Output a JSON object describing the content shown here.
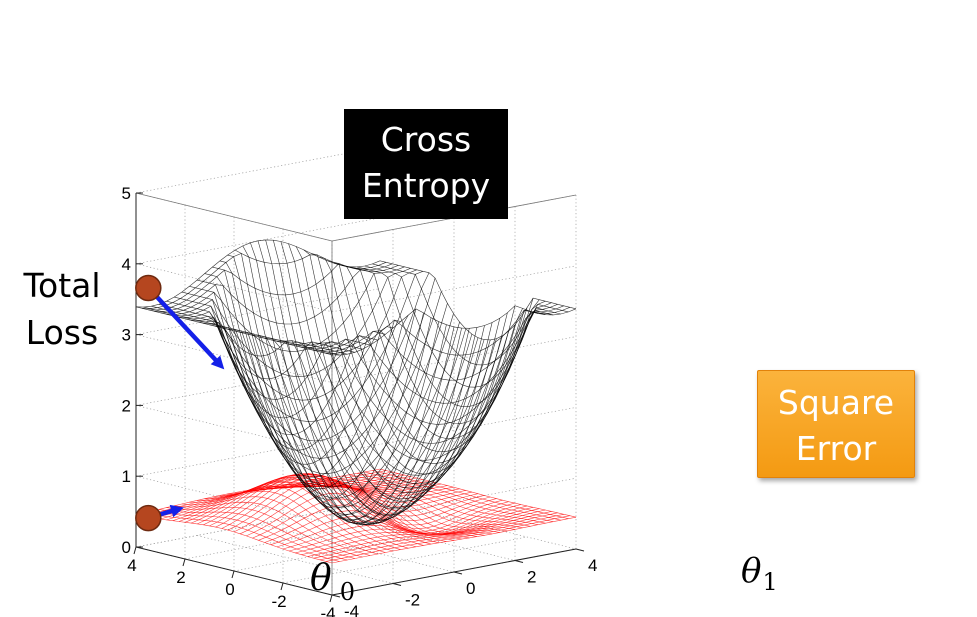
{
  "chart_data": {
    "type": "surface3d",
    "title": "",
    "zlabel": "Total Loss",
    "xlabel": "θ 0",
    "ylabel": "θ1",
    "x_symbol": "θ",
    "x_sub": "0",
    "y_symbol": "θ",
    "y_sub": "1",
    "xlim": [
      -4,
      4
    ],
    "ylim": [
      -4,
      4
    ],
    "zlim": [
      0,
      5
    ],
    "x_ticks": [
      "4",
      "2",
      "0",
      "-2",
      "-4"
    ],
    "y_ticks": [
      "-4",
      "-2",
      "0",
      "2",
      "4"
    ],
    "z_ticks": [
      "0",
      "1",
      "2",
      "3",
      "4",
      "5"
    ],
    "grid": true,
    "series": [
      {
        "name": "Cross Entropy",
        "color": "#000000",
        "max_z": 4.0,
        "min_z": 0.0
      },
      {
        "name": "Square Error",
        "color": "#ff0000",
        "max_z": 1.5,
        "min_z": 0.0
      }
    ],
    "annotations": [
      {
        "label": "Cross Entropy",
        "style": "black-box"
      },
      {
        "label": "Square Error",
        "style": "orange-box"
      }
    ],
    "start_point": {
      "x": 3.5,
      "y": -4,
      "z_cross_entropy": 3.7,
      "z_square_error": 0.45,
      "color": "#b5461f"
    },
    "gradient_arrow_color": "#1420e8"
  }
}
